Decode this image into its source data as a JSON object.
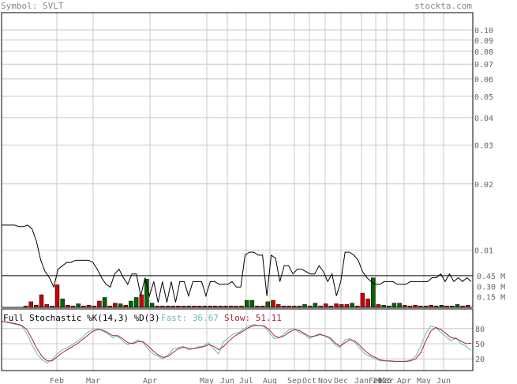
{
  "header": {
    "symbol_text": "Symbol: SVLT",
    "site_text": "stockta.com"
  },
  "colors": {
    "header_text": "#888888",
    "grid": "#c8c8c8",
    "price_line": "#000000",
    "volume_up": "#006600",
    "volume_down": "#cc0000",
    "fast_line": "#66bbbb",
    "slow_line": "#aa2244",
    "axis_text": "#666666"
  },
  "chart_data": [
    {
      "type": "line",
      "scale": "log",
      "ylim": [
        0.0055,
        0.12
      ],
      "y_ticks": [
        {
          "value": 0.1,
          "label": "0.10"
        },
        {
          "value": 0.09,
          "label": "0.09"
        },
        {
          "value": 0.08,
          "label": "0.08"
        },
        {
          "value": 0.07,
          "label": "0.07"
        },
        {
          "value": 0.06,
          "label": "0.06"
        },
        {
          "value": 0.05,
          "label": "0.05"
        },
        {
          "value": 0.04,
          "label": "0.04"
        },
        {
          "value": 0.03,
          "label": "0.03"
        },
        {
          "value": 0.02,
          "label": "0.02"
        },
        {
          "value": 0.01,
          "label": "0.01"
        }
      ],
      "x_ticks": [
        "Feb",
        "Mar",
        "Apr",
        "May",
        "Jun",
        "Jul",
        "Aug",
        "Sep",
        "Oct",
        "Nov",
        "Dec",
        "Jan",
        "Feb",
        "Mar",
        "Apr",
        "May",
        "Jun"
      ],
      "year_label": "2025",
      "grid": true,
      "series": [
        {
          "values": [
            0.013,
            0.013,
            0.013,
            0.013,
            0.0128,
            0.0128,
            0.013,
            0.0125,
            0.011,
            0.009,
            0.008,
            0.0075,
            0.0068,
            0.0082,
            0.0085,
            0.0088,
            0.0088,
            0.009,
            0.009,
            0.009,
            0.009,
            0.0088,
            0.0082,
            0.0075,
            0.007,
            0.0068,
            0.0078,
            0.0082,
            0.0075,
            0.007,
            0.0078,
            0.0078,
            0.0062,
            0.0075,
            0.0062,
            0.0072,
            0.0058,
            0.0072,
            0.0058,
            0.0072,
            0.0058,
            0.0072,
            0.0072,
            0.0062,
            0.0072,
            0.0072,
            0.0072,
            0.0062,
            0.0072,
            0.0072,
            0.007,
            0.007,
            0.007,
            0.0072,
            0.0068,
            0.0068,
            0.0095,
            0.0098,
            0.0098,
            0.0095,
            0.0095,
            0.0062,
            0.0095,
            0.0092,
            0.0072,
            0.0085,
            0.0085,
            0.0078,
            0.0082,
            0.0082,
            0.008,
            0.0078,
            0.0078,
            0.0085,
            0.008,
            0.0072,
            0.0078,
            0.0062,
            0.0072,
            0.0098,
            0.0098,
            0.0095,
            0.009,
            0.008,
            0.0075,
            0.0072,
            0.007,
            0.007,
            0.0072,
            0.0072,
            0.0072,
            0.007,
            0.007,
            0.007,
            0.0072,
            0.0072,
            0.0072,
            0.0072,
            0.0072,
            0.0075,
            0.0075,
            0.0078,
            0.0072,
            0.0078,
            0.0072,
            0.0075,
            0.0072,
            0.0075,
            0.0072
          ]
        }
      ]
    },
    {
      "type": "bar",
      "title": "",
      "y_ticks": [
        {
          "value": 0.45,
          "label": "0.45 M"
        },
        {
          "value": 0.3,
          "label": "0.30 M"
        },
        {
          "value": 0.15,
          "label": "0.15 M"
        }
      ],
      "ylim": [
        0,
        0.55
      ],
      "series": [
        {
          "values": [
            0.02,
            0.08,
            0.03,
            0.18,
            0.04,
            0.02,
            0.32,
            0.12,
            0.03,
            0.02,
            0.05,
            0.02,
            0.03,
            0.02,
            0.09,
            0.14,
            0.02,
            0.06,
            0.05,
            0.03,
            0.09,
            0.14,
            0.18,
            0.4,
            0.06,
            0.02,
            0.02,
            0.02,
            0.02,
            0.02,
            0.02,
            0.02,
            0.02,
            0.02,
            0.02,
            0.02,
            0.02,
            0.02,
            0.02,
            0.02,
            0.02,
            0.02,
            0.1,
            0.1,
            0.02,
            0.02,
            0.08,
            0.1,
            0.04,
            0.02,
            0.02,
            0.02,
            0.02,
            0.04,
            0.02,
            0.06,
            0.02,
            0.05,
            0.02,
            0.05,
            0.04,
            0.04,
            0.06,
            0.02,
            0.2,
            0.12,
            0.42,
            0.04,
            0.03,
            0.02,
            0.06,
            0.06,
            0.03,
            0.02,
            0.03,
            0.02,
            0.02,
            0.03,
            0.02,
            0.03,
            0.02,
            0.02,
            0.04,
            0.02,
            0.03
          ],
          "up": [
            false,
            false,
            false,
            false,
            false,
            false,
            false,
            true,
            false,
            false,
            true,
            false,
            false,
            false,
            false,
            true,
            false,
            false,
            true,
            false,
            true,
            true,
            false,
            true,
            true,
            false,
            false,
            false,
            false,
            false,
            false,
            false,
            false,
            false,
            false,
            false,
            false,
            false,
            false,
            false,
            false,
            false,
            true,
            true,
            false,
            false,
            true,
            false,
            false,
            false,
            false,
            false,
            false,
            true,
            false,
            true,
            false,
            false,
            false,
            false,
            false,
            false,
            true,
            false,
            false,
            false,
            true,
            false,
            true,
            true,
            true,
            true,
            false,
            false,
            false,
            false,
            false,
            false,
            false,
            true,
            false,
            false,
            true,
            false,
            false
          ]
        }
      ]
    },
    {
      "type": "line",
      "title": "Full Stochastic %K(14,3) %D(3)",
      "ylim": [
        0,
        100
      ],
      "y_ticks": [
        {
          "value": 80,
          "label": "80"
        },
        {
          "value": 50,
          "label": "50"
        },
        {
          "value": 20,
          "label": "20"
        }
      ],
      "series": [
        {
          "name": "Fast: 36.67",
          "values": [
            95,
            92,
            90,
            88,
            85,
            70,
            48,
            30,
            18,
            12,
            18,
            30,
            38,
            42,
            48,
            55,
            62,
            72,
            78,
            80,
            75,
            70,
            62,
            65,
            55,
            48,
            52,
            58,
            52,
            40,
            30,
            25,
            20,
            28,
            40,
            42,
            45,
            38,
            40,
            44,
            45,
            52,
            40,
            30,
            55,
            62,
            70,
            72,
            80,
            85,
            88,
            86,
            84,
            72,
            60,
            62,
            70,
            78,
            80,
            72,
            68,
            60,
            66,
            70,
            65,
            60,
            48,
            42,
            58,
            60,
            52,
            40,
            30,
            25,
            20,
            16,
            16,
            15,
            15,
            15,
            15,
            18,
            25,
            45,
            70,
            85,
            82,
            72,
            64,
            56,
            62,
            50,
            45,
            36.67
          ]
        },
        {
          "name": "Slow: 51.11",
          "values": [
            94,
            93,
            91,
            89,
            86,
            78,
            60,
            40,
            25,
            16,
            16,
            24,
            32,
            38,
            44,
            50,
            58,
            66,
            74,
            78,
            77,
            72,
            66,
            66,
            60,
            52,
            50,
            54,
            54,
            46,
            36,
            28,
            23,
            25,
            33,
            40,
            43,
            41,
            40,
            42,
            44,
            48,
            45,
            38,
            45,
            55,
            64,
            70,
            76,
            82,
            86,
            86,
            85,
            78,
            66,
            62,
            66,
            73,
            78,
            76,
            70,
            64,
            65,
            68,
            66,
            62,
            52,
            45,
            52,
            58,
            55,
            46,
            36,
            28,
            23,
            18,
            16,
            16,
            15,
            15,
            15,
            16,
            20,
            32,
            55,
            75,
            82,
            78,
            70,
            62,
            60,
            55,
            50,
            51.11
          ]
        }
      ]
    }
  ]
}
